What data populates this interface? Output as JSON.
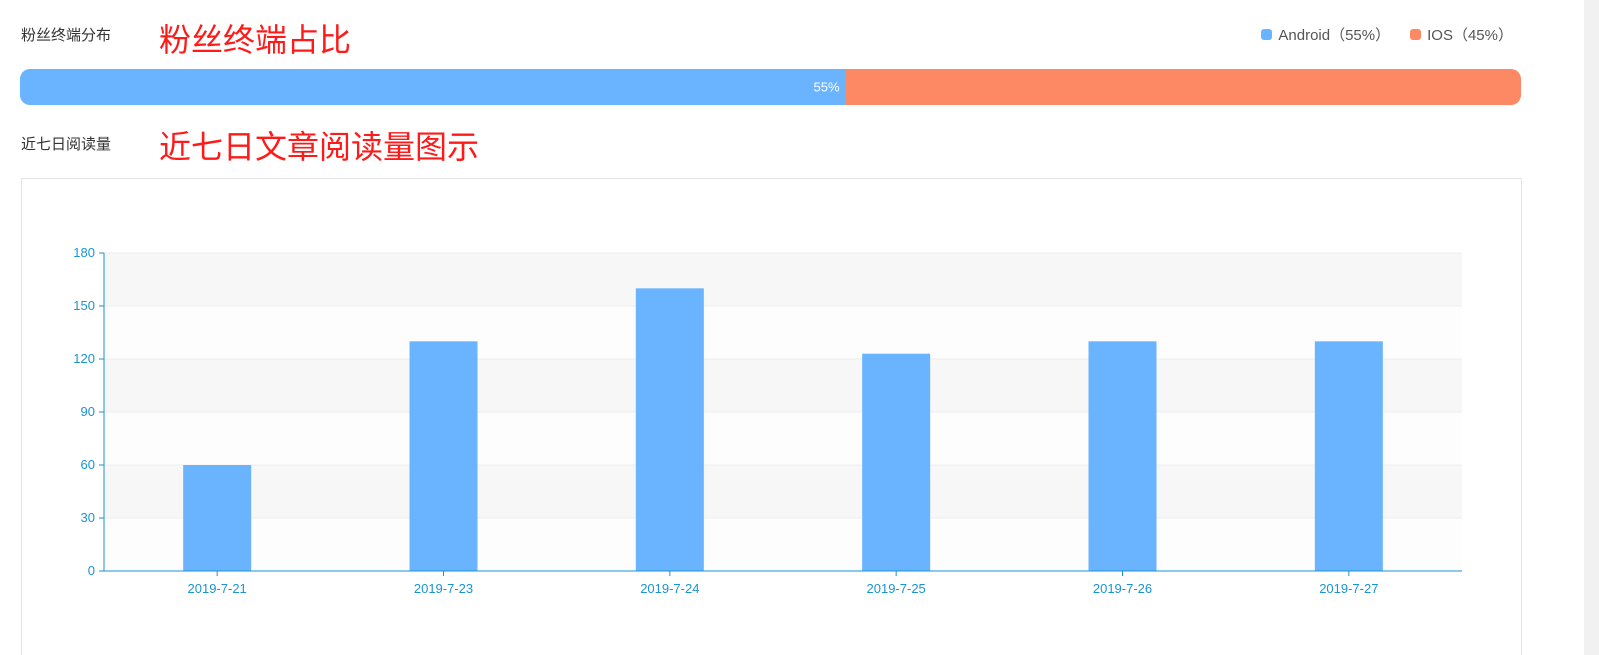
{
  "fans": {
    "section_label": "粉丝终端分布",
    "annotation": "粉丝终端占比",
    "legend": [
      {
        "label": "Android（55%）",
        "color": "#6ab4ff"
      },
      {
        "label": "IOS（45%）",
        "color": "#fc8963"
      }
    ],
    "segments": [
      {
        "name": "Android",
        "percent": 55,
        "label": "55%",
        "color": "#6ab4ff"
      },
      {
        "name": "IOS",
        "percent": 45,
        "label": "",
        "color": "#fc8963"
      }
    ]
  },
  "reads": {
    "section_label": "近七日阅读量",
    "annotation": "近七日文章阅读量图示"
  },
  "chart_data": {
    "type": "bar",
    "title": "",
    "xlabel": "",
    "ylabel": "",
    "categories": [
      "2019-7-21",
      "2019-7-23",
      "2019-7-24",
      "2019-7-25",
      "2019-7-26",
      "2019-7-27"
    ],
    "values": [
      60,
      130,
      160,
      123,
      130,
      130
    ],
    "ylim": [
      0,
      180
    ],
    "yticks": [
      0,
      30,
      60,
      90,
      120,
      150,
      180
    ],
    "bar_color": "#6ab4ff",
    "axis_color": "#1a94d1",
    "grid": true
  }
}
